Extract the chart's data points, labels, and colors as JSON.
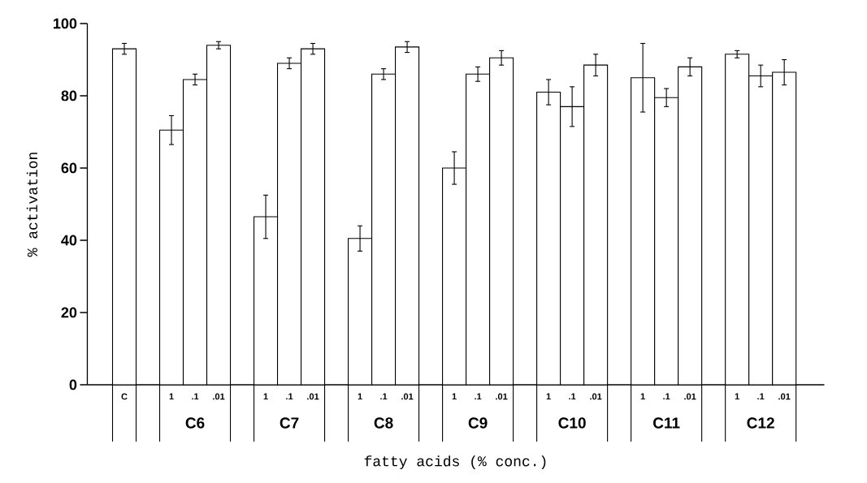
{
  "chart_data": {
    "type": "bar",
    "xlabel": "fatty acids (% conc.)",
    "ylabel": "% activation",
    "categories": [
      "C",
      null,
      "1",
      ".1",
      ".01",
      null,
      "1",
      ".1",
      ".01",
      null,
      "1",
      ".1",
      ".01",
      null,
      "1",
      ".1",
      ".01",
      null,
      "1",
      ".1",
      ".01",
      null,
      "1",
      ".1",
      ".01",
      null,
      "1",
      ".1",
      ".01"
    ],
    "series": [
      {
        "color": "#ffffff",
        "values": [
          93,
          null,
          null,
          null,
          null,
          null,
          null,
          null,
          null,
          null,
          null,
          null,
          null,
          null,
          null,
          null,
          null,
          null,
          null,
          null,
          null,
          null,
          null,
          null,
          null,
          null,
          null,
          null,
          null
        ],
        "errors": [
          1.5,
          null,
          null,
          null,
          null,
          null,
          null,
          null,
          null,
          null,
          null,
          null,
          null,
          null,
          null,
          null,
          null,
          null,
          null,
          null,
          null,
          null,
          null,
          null,
          null,
          null,
          null,
          null,
          null
        ]
      },
      {
        "color": "#ffffff",
        "values": [
          null,
          null,
          70.5,
          84.5,
          94,
          null,
          46.5,
          89,
          93,
          null,
          40.5,
          86,
          93.5,
          null,
          60,
          86,
          90.5,
          null,
          81,
          77,
          88.5,
          null,
          85,
          79.5,
          88,
          null,
          91.5,
          85.5,
          86.5
        ],
        "errors": [
          null,
          null,
          4,
          1.5,
          1,
          null,
          6,
          1.5,
          1.5,
          null,
          3.5,
          1.5,
          1.5,
          null,
          4.5,
          2,
          2,
          null,
          3.5,
          5.5,
          3,
          null,
          9.5,
          2.5,
          2.5,
          null,
          1,
          3,
          3.5
        ]
      }
    ],
    "annotations": [
      {
        "text": "C6",
        "y": 0
      },
      {
        "text": "C7",
        "y": 0
      },
      {
        "text": "C8",
        "y": 0
      },
      {
        "text": "C9",
        "y": 0
      },
      {
        "text": "C10",
        "y": 0
      },
      {
        "text": "C11",
        "y": 0
      },
      {
        "text": "C12",
        "y": 0
      }
    ],
    "ylim": [
      0,
      100
    ],
    "yticks": [
      0,
      20,
      40,
      60,
      80,
      100
    ],
    "grid": false
  }
}
